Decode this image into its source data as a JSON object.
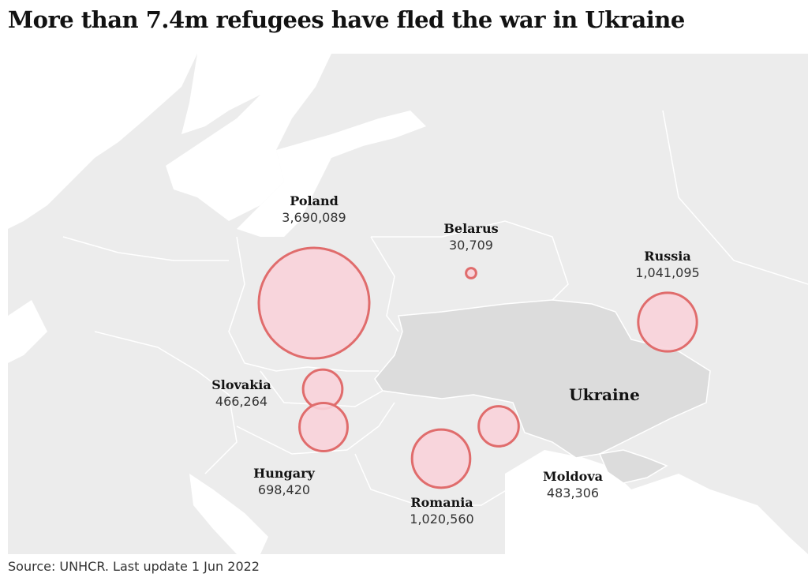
{
  "title": "More than 7.4m refugees have fled the war in Ukraine",
  "source": "Source: UNHCR. Last update 1 Jun 2022",
  "highlight_label": "Ukraine",
  "colors": {
    "land": "#ececec",
    "ukraine": "#dcdcdc",
    "bubble_fill": "#f9d3da",
    "bubble_stroke": "#e06c6c"
  },
  "countries": [
    {
      "name": "Poland",
      "value": "3,690,089",
      "refugees": 3690089
    },
    {
      "name": "Belarus",
      "value": "30,709",
      "refugees": 30709
    },
    {
      "name": "Russia",
      "value": "1,041,095",
      "refugees": 1041095
    },
    {
      "name": "Slovakia",
      "value": "466,264",
      "refugees": 466264
    },
    {
      "name": "Hungary",
      "value": "698,420",
      "refugees": 698420
    },
    {
      "name": "Romania",
      "value": "1,020,560",
      "refugees": 1020560
    },
    {
      "name": "Moldova",
      "value": "483,306",
      "refugees": 483306
    }
  ]
}
